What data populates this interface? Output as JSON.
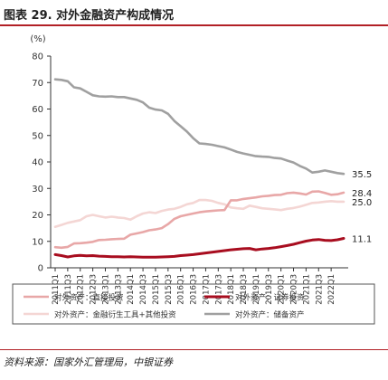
{
  "figure": {
    "title": "图表 29. 对外金融资产构成情况",
    "source": "资料来源：国家外汇管理局，中银证券"
  },
  "chart_data": {
    "type": "line",
    "ylabel": "(%)",
    "ylim": [
      0,
      80
    ],
    "yticks": [
      "0",
      "10",
      "20",
      "30",
      "40",
      "50",
      "60",
      "70",
      "80"
    ],
    "grid": false,
    "legend_position": "bottom",
    "x": [
      "2011Q1",
      "2011Q2",
      "2011Q3",
      "2011Q4",
      "2012Q1",
      "2012Q2",
      "2012Q3",
      "2012Q4",
      "2013Q1",
      "2013Q2",
      "2013Q3",
      "2013Q4",
      "2014Q1",
      "2014Q2",
      "2014Q3",
      "2014Q4",
      "2015Q1",
      "2015Q2",
      "2015Q3",
      "2015Q4",
      "2016Q1",
      "2016Q2",
      "2016Q3",
      "2016Q4",
      "2017Q1",
      "2017Q2",
      "2017Q3",
      "2017Q4",
      "2018Q1",
      "2018Q2",
      "2018Q3",
      "2018Q4",
      "2019Q1",
      "2019Q2",
      "2019Q3",
      "2019Q4",
      "2020Q1",
      "2020Q2",
      "2020Q3",
      "2020Q4",
      "2021Q1",
      "2021Q2",
      "2021Q3",
      "2021Q4",
      "2022Q1",
      "2022Q2",
      "2022Q3"
    ],
    "xtick_labels": [
      "2011Q1",
      "2011Q3",
      "2012Q1",
      "2012Q3",
      "2013Q1",
      "2013Q3",
      "2014Q1",
      "2014Q3",
      "2015Q1",
      "2015Q3",
      "2016Q1",
      "2016Q3",
      "2017Q1",
      "2017Q3",
      "2018Q1",
      "2018Q3",
      "2019Q1",
      "2019Q3",
      "2020Q1",
      "2020Q3",
      "2021Q1",
      "2021Q3",
      "2022Q1"
    ],
    "series": [
      {
        "name": "对外资产：直接投资",
        "color": "#e8a7a7",
        "end_label": "28.4",
        "values": [
          7.8,
          7.6,
          7.9,
          9.2,
          9.3,
          9.5,
          9.8,
          10.5,
          10.6,
          10.8,
          10.9,
          11.0,
          12.5,
          13.0,
          13.5,
          14.2,
          14.5,
          15.0,
          16.5,
          18.5,
          19.5,
          20.0,
          20.5,
          21.0,
          21.3,
          21.5,
          21.7,
          21.8,
          25.5,
          25.5,
          26.0,
          26.3,
          26.6,
          27.0,
          27.2,
          27.5,
          27.6,
          28.2,
          28.4,
          28.1,
          27.7,
          28.8,
          28.9,
          28.3,
          27.6,
          27.8,
          28.4
        ]
      },
      {
        "name": "对外资产：证券投资",
        "color": "#a80d1f",
        "end_label": "11.1",
        "values": [
          5.0,
          4.6,
          4.1,
          4.5,
          4.7,
          4.5,
          4.6,
          4.4,
          4.3,
          4.2,
          4.2,
          4.1,
          4.2,
          4.1,
          4.0,
          4.0,
          4.0,
          4.1,
          4.2,
          4.3,
          4.6,
          4.8,
          5.0,
          5.3,
          5.6,
          5.9,
          6.2,
          6.5,
          6.8,
          7.0,
          7.2,
          7.3,
          6.8,
          7.1,
          7.3,
          7.6,
          8.0,
          8.4,
          8.9,
          9.5,
          10.1,
          10.5,
          10.7,
          10.4,
          10.3,
          10.6,
          11.1
        ]
      },
      {
        "name": "对外资产：金融衍生工具+其他投资",
        "color": "#f4d6d4",
        "end_label": "25.0",
        "values": [
          15.5,
          16.2,
          17.0,
          17.5,
          18.0,
          19.5,
          20.0,
          19.5,
          19.0,
          19.3,
          19.0,
          18.8,
          18.2,
          19.5,
          20.5,
          21.0,
          20.7,
          21.5,
          22.0,
          22.3,
          23.0,
          24.0,
          24.5,
          25.6,
          25.6,
          25.3,
          24.5,
          24.0,
          22.8,
          22.5,
          22.3,
          23.5,
          23.0,
          22.5,
          22.3,
          22.1,
          21.8,
          22.3,
          22.6,
          23.1,
          23.8,
          24.5,
          24.7,
          25.0,
          25.2,
          25.0,
          25.0
        ]
      },
      {
        "name": "对外资产：储备资产",
        "color": "#a0a0a0",
        "end_label": "35.5",
        "values": [
          71.2,
          71.0,
          70.5,
          68.2,
          67.8,
          66.5,
          65.2,
          64.8,
          64.7,
          64.8,
          64.5,
          64.5,
          64.0,
          63.5,
          62.5,
          60.5,
          59.8,
          59.5,
          58.2,
          55.5,
          53.5,
          51.5,
          49.0,
          47.0,
          46.8,
          46.5,
          46.0,
          45.5,
          44.7,
          43.8,
          43.2,
          42.7,
          42.2,
          42.0,
          41.9,
          41.5,
          41.3,
          40.5,
          39.8,
          38.5,
          37.5,
          36.0,
          36.3,
          36.8,
          36.3,
          35.8,
          35.5
        ]
      }
    ]
  }
}
